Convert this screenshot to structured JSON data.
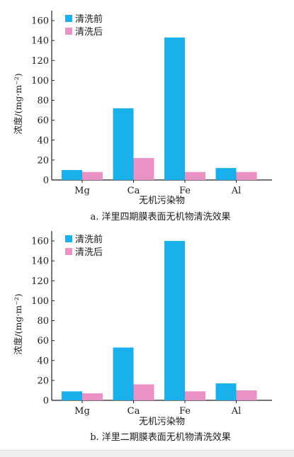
{
  "chart_data": [
    {
      "type": "bar",
      "caption": "a. 洋里四期膜表面无机物清洗效果",
      "xlabel": "无机污染物",
      "ylabel": "浓度/(mg·m⁻²)",
      "categories": [
        "Mg",
        "Ca",
        "Fe",
        "Al"
      ],
      "ylim": [
        0,
        170
      ],
      "yticks": [
        0,
        20,
        40,
        60,
        80,
        100,
        120,
        140,
        160
      ],
      "legend_position": "top-left",
      "series": [
        {
          "name": "清洗前",
          "color": "#1ab0ec",
          "values": [
            10,
            72,
            143,
            12
          ]
        },
        {
          "name": "清洗后",
          "color": "#ea92c6",
          "values": [
            8,
            22,
            8,
            8
          ]
        }
      ]
    },
    {
      "type": "bar",
      "caption": "b. 洋里二期膜表面无机物清洗效果",
      "xlabel": "无机污染物",
      "ylabel": "浓度/(mg·m⁻²)",
      "categories": [
        "Mg",
        "Ca",
        "Fe",
        "Al"
      ],
      "ylim": [
        0,
        170
      ],
      "yticks": [
        0,
        20,
        40,
        60,
        80,
        100,
        120,
        140,
        160
      ],
      "legend_position": "top-left",
      "series": [
        {
          "name": "清洗前",
          "color": "#1ab0ec",
          "values": [
            9,
            53,
            160,
            17
          ]
        },
        {
          "name": "清洗后",
          "color": "#ea92c6",
          "values": [
            7,
            16,
            9,
            10
          ]
        }
      ]
    }
  ]
}
